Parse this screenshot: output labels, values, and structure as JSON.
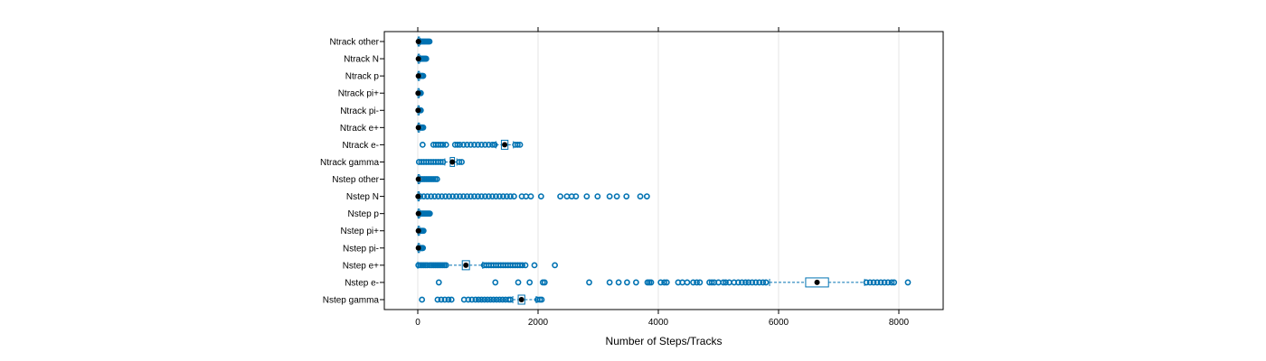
{
  "chart_data": {
    "type": "box",
    "orientation": "horizontal",
    "title": "",
    "xlabel": "Number of Steps/Tracks",
    "ylabel": "",
    "xlim": [
      -550,
      8650
    ],
    "xticks": [
      0,
      2000,
      4000,
      6000,
      8000
    ],
    "xtick_labels": [
      "0",
      "2000",
      "4000",
      "6000",
      "8000"
    ],
    "grid": "vertical",
    "box_color": "#0072b2",
    "point_color": "#0072b2",
    "categories": [
      "Nstep gamma",
      "Nstep e-",
      "Nstep e+",
      "Nstep pi-",
      "Nstep pi+",
      "Nstep p",
      "Nstep N",
      "Nstep other",
      "Ntrack gamma",
      "Ntrack e-",
      "Ntrack e+",
      "Ntrack pi-",
      "Ntrack pi+",
      "Ntrack p",
      "Ntrack N",
      "Ntrack other"
    ],
    "boxes": [
      {
        "category": "Nstep gamma",
        "whisker_low": 1580,
        "q1": 1670,
        "median": 1725,
        "q3": 1780,
        "whisker_high": 1970,
        "outliers": [
          70,
          330,
          390,
          450,
          510,
          560,
          770,
          840,
          900,
          960,
          1010,
          1060,
          1110,
          1160,
          1210,
          1260,
          1310,
          1360,
          1410,
          1460,
          1510,
          1540,
          1990,
          2030,
          2060
        ]
      },
      {
        "category": "Nstep e-",
        "whisker_low": 5850,
        "q1": 6450,
        "median": 6640,
        "q3": 6830,
        "whisker_high": 7430,
        "outliers": [
          350,
          1290,
          1670,
          1860,
          2080,
          2110,
          2850,
          3190,
          3340,
          3480,
          3630,
          3820,
          3850,
          3880,
          4040,
          4100,
          4140,
          4330,
          4400,
          4480,
          4580,
          4640,
          4690,
          4850,
          4890,
          4930,
          5000,
          5080,
          5120,
          5180,
          5260,
          5330,
          5390,
          5450,
          5500,
          5560,
          5620,
          5680,
          5740,
          5790,
          7460,
          7520,
          7580,
          7640,
          7700,
          7760,
          7820,
          7880,
          7920,
          8150
        ]
      },
      {
        "category": "Nstep e+",
        "whisker_low": 0,
        "q1": 740,
        "median": 800,
        "q3": 860,
        "whisker_high": 1080,
        "outliers": [
          10,
          40,
          70,
          100,
          130,
          160,
          200,
          230,
          260,
          290,
          320,
          350,
          380,
          410,
          440,
          470,
          1100,
          1140,
          1180,
          1220,
          1260,
          1300,
          1340,
          1380,
          1420,
          1460,
          1500,
          1540,
          1580,
          1620,
          1660,
          1700,
          1740,
          1790,
          1940,
          2280
        ]
      },
      {
        "category": "Nstep pi-",
        "whisker_low": 0,
        "q1": 5,
        "median": 10,
        "q3": 15,
        "whisker_high": 30,
        "outliers": [
          35,
          45,
          55,
          65,
          75,
          85
        ]
      },
      {
        "category": "Nstep pi+",
        "whisker_low": 0,
        "q1": 5,
        "median": 10,
        "q3": 15,
        "whisker_high": 30,
        "outliers": [
          35,
          45,
          55,
          65,
          75,
          85,
          95
        ]
      },
      {
        "category": "Nstep p",
        "whisker_low": 0,
        "q1": 5,
        "median": 10,
        "q3": 20,
        "whisker_high": 40,
        "outliers": [
          50,
          65,
          80,
          95,
          110,
          125,
          140,
          155,
          170,
          185,
          200
        ]
      },
      {
        "category": "Nstep N",
        "whisker_low": 0,
        "q1": 2,
        "median": 5,
        "q3": 10,
        "whisker_high": 25,
        "outliers": [
          40,
          100,
          160,
          220,
          280,
          340,
          400,
          460,
          520,
          580,
          640,
          700,
          760,
          820,
          880,
          940,
          1000,
          1060,
          1120,
          1180,
          1240,
          1300,
          1360,
          1420,
          1480,
          1540,
          1600,
          1730,
          1800,
          1880,
          2050,
          2370,
          2480,
          2560,
          2630,
          2810,
          2990,
          3190,
          3310,
          3470,
          3700,
          3810
        ]
      },
      {
        "category": "Nstep other",
        "whisker_low": 0,
        "q1": 5,
        "median": 10,
        "q3": 20,
        "whisker_high": 40,
        "outliers": [
          50,
          80,
          110,
          140,
          170,
          200,
          230,
          260,
          290,
          320
        ]
      },
      {
        "category": "Ntrack gamma",
        "whisker_low": 450,
        "q1": 540,
        "median": 575,
        "q3": 610,
        "whisker_high": 650,
        "outliers": [
          20,
          60,
          100,
          140,
          180,
          220,
          260,
          300,
          340,
          380,
          420,
          690,
          730
        ]
      },
      {
        "category": "Ntrack e-",
        "whisker_low": 1300,
        "q1": 1390,
        "median": 1445,
        "q3": 1500,
        "whisker_high": 1590,
        "outliers": [
          80,
          260,
          300,
          340,
          380,
          420,
          470,
          620,
          660,
          700,
          760,
          820,
          880,
          940,
          1000,
          1060,
          1120,
          1180,
          1240,
          1280,
          1620,
          1660,
          1700
        ]
      },
      {
        "category": "Ntrack e+",
        "whisker_low": 0,
        "q1": 5,
        "median": 10,
        "q3": 15,
        "whisker_high": 30,
        "outliers": [
          40,
          50,
          60,
          70,
          80,
          90
        ]
      },
      {
        "category": "Ntrack pi-",
        "whisker_low": 0,
        "q1": 2,
        "median": 5,
        "q3": 8,
        "whisker_high": 15,
        "outliers": [
          20,
          30,
          40,
          50
        ]
      },
      {
        "category": "Ntrack pi+",
        "whisker_low": 0,
        "q1": 2,
        "median": 5,
        "q3": 8,
        "whisker_high": 15,
        "outliers": [
          20,
          30,
          40,
          50
        ]
      },
      {
        "category": "Ntrack p",
        "whisker_low": 0,
        "q1": 5,
        "median": 10,
        "q3": 15,
        "whisker_high": 30,
        "outliers": [
          40,
          50,
          60,
          70,
          80,
          90
        ]
      },
      {
        "category": "Ntrack N",
        "whisker_low": 0,
        "q1": 5,
        "median": 10,
        "q3": 20,
        "whisker_high": 40,
        "outliers": [
          50,
          65,
          80,
          95,
          110,
          125,
          140
        ]
      },
      {
        "category": "Ntrack other",
        "whisker_low": 0,
        "q1": 5,
        "median": 10,
        "q3": 20,
        "whisker_high": 40,
        "outliers": [
          55,
          75,
          95,
          115,
          135,
          155,
          175,
          195
        ]
      }
    ]
  }
}
